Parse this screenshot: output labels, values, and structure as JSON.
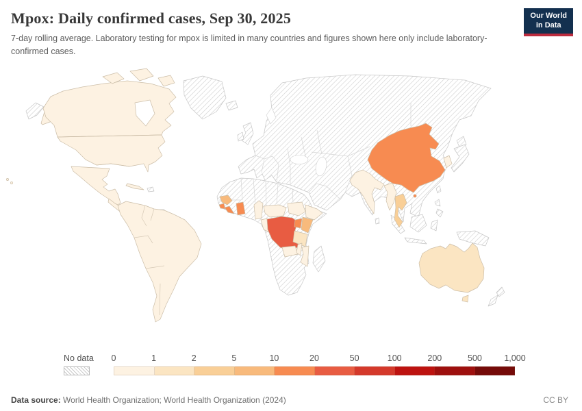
{
  "header": {
    "title": "Mpox: Daily confirmed cases, Sep 30, 2025",
    "subtitle": "7-day rolling average. Laboratory testing for mpox is limited in many countries and figures shown here only include laboratory-confirmed cases.",
    "logo_line1": "Our World",
    "logo_line2": "in Data",
    "logo_bg_color": "#13304f",
    "logo_accent_color": "#bc2b3e"
  },
  "legend": {
    "no_data_label": "No data",
    "tick_labels": [
      "0",
      "1",
      "2",
      "5",
      "10",
      "20",
      "50",
      "100",
      "200",
      "500",
      "1,000"
    ],
    "bin_colors": [
      "#fdf2e2",
      "#fbe5c2",
      "#f9cf97",
      "#f8ba7c",
      "#f78b51",
      "#e85c42",
      "#d4392b",
      "#bd1310",
      "#9e100e",
      "#750b09"
    ]
  },
  "footer": {
    "data_source_label": "Data source:",
    "data_source_value": " World Health Organization; World Health Organization (2024)",
    "license": "CC BY"
  },
  "chart_data": {
    "type": "choropleth_map",
    "title": "Mpox: Daily confirmed cases, Sep 30, 2025",
    "date_shown": "Sep 30, 2025",
    "metric": "Daily confirmed mpox cases, 7-day rolling average, laboratory-confirmed only",
    "legend_scale": {
      "kind": "log-binned sequential (OrRd style)",
      "bin_edges": [
        0,
        1,
        2,
        5,
        10,
        20,
        50,
        100,
        200,
        500,
        1000
      ],
      "bin_colors": [
        "#fdf2e2",
        "#fbe5c2",
        "#f9cf97",
        "#f8ba7c",
        "#f78b51",
        "#e85c42",
        "#d4392b",
        "#bd1310",
        "#9e100e",
        "#750b09"
      ],
      "no_data_style": "white with gray diagonal hatching"
    },
    "country_bin_index": {
      "usa": 0,
      "canada": 0,
      "alaska": 0,
      "arctic-islands": 0,
      "hawaii": 0,
      "mexico": 0,
      "central-america": 0,
      "cuba": 0,
      "south-america": 0,
      "india": 0,
      "south-korea": 0,
      "myanmar": 0,
      "ethiopia": 0,
      "south-sudan": 0,
      "central-african-republic": 0,
      "cameroon": 0,
      "republic-of-congo": 0,
      "zambia": 0,
      "malawi": 0,
      "mozambique": 0,
      "australia": 1,
      "tasmania": 1,
      "tanzania": 1,
      "thailand": 2,
      "guinea": 3,
      "kenya": 3,
      "china": 4,
      "hong-kong": 4,
      "ghana": 4,
      "liberia": 4,
      "sierra-leone": 4,
      "uganda": 4,
      "democratic-republic-of-congo": 5
    },
    "country_values_readable": {
      "Democratic Republic of Congo": "20–50",
      "China": "10–20",
      "Ghana": "10–20",
      "Liberia": "10–20",
      "Sierra Leone": "10–20",
      "Uganda": "10–20",
      "Guinea": "5–10",
      "Kenya": "5–10",
      "Thailand": "2–5",
      "Australia": "1–2",
      "Tanzania": "1–2",
      "United States": "0–1",
      "Canada": "0–1",
      "Mexico": "0–1",
      "South America (most countries)": "0–1",
      "India": "0–1",
      "South Korea": "0–1",
      "Myanmar": "0–1",
      "Ethiopia": "0–1",
      "South Sudan": "0–1",
      "Central African Republic": "0–1",
      "Cameroon": "0–1",
      "Republic of Congo": "0–1",
      "Zambia": "0–1",
      "Malawi": "0–1",
      "Mozambique": "0–1",
      "no_data": "Europe, Russia, Middle East, North Africa, Nigeria, Angola, Southern Africa, Japan, SE Asia islands, Greenland, New Zealand and others"
    }
  }
}
